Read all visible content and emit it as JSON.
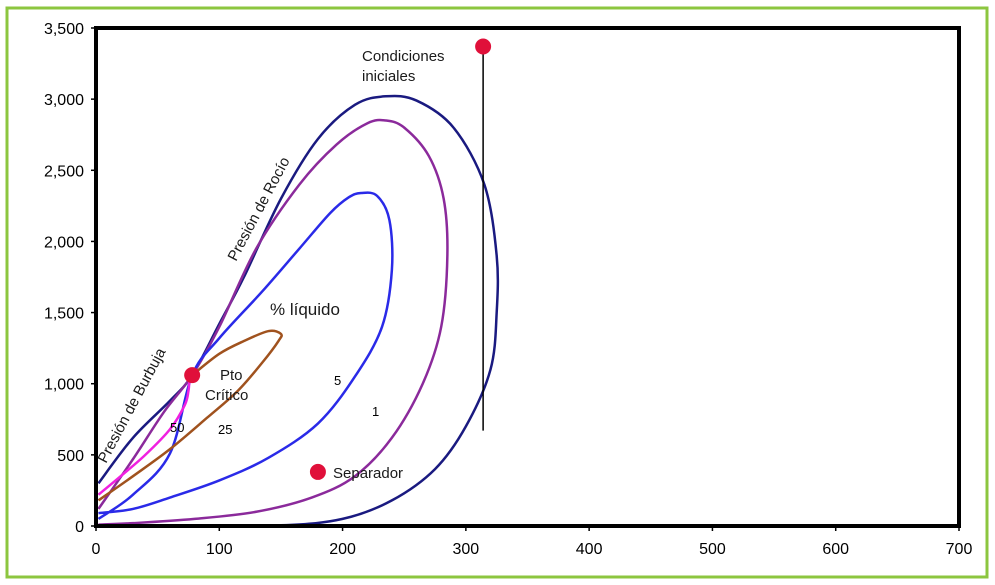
{
  "chart_data": {
    "type": "line",
    "title": "",
    "xlabel": "",
    "ylabel": "",
    "xlim": [
      0,
      700
    ],
    "ylim": [
      0,
      3500
    ],
    "x_ticks": [
      {
        "value": 0,
        "label": "0"
      },
      {
        "value": 100,
        "label": "100"
      },
      {
        "value": 200,
        "label": "200"
      },
      {
        "value": 300,
        "label": "300"
      },
      {
        "value": 400,
        "label": "400"
      },
      {
        "value": 500,
        "label": "500"
      },
      {
        "value": 600,
        "label": "600"
      },
      {
        "value": 700,
        "label": "700"
      }
    ],
    "y_ticks": [
      {
        "value": 0,
        "label": "0"
      },
      {
        "value": 500,
        "label": "500"
      },
      {
        "value": 1000,
        "label": "1,000"
      },
      {
        "value": 1500,
        "label": "1,500"
      },
      {
        "value": 2000,
        "label": "2,000"
      },
      {
        "value": 2500,
        "label": "2,500"
      },
      {
        "value": 3000,
        "label": "3,000"
      },
      {
        "value": 3500,
        "label": "3,500"
      }
    ],
    "grid": false,
    "legend": "none",
    "series": [
      {
        "name": "",
        "color": "#1a1a80",
        "points": [
          [
            2,
            300
          ],
          [
            30,
            620
          ],
          [
            60,
            880
          ],
          [
            78,
            1060
          ],
          [
            100,
            1420
          ],
          [
            120,
            1750
          ],
          [
            150,
            2300
          ],
          [
            180,
            2720
          ],
          [
            210,
            2960
          ],
          [
            235,
            3020
          ],
          [
            260,
            2990
          ],
          [
            290,
            2800
          ],
          [
            315,
            2400
          ],
          [
            325,
            1900
          ],
          [
            325,
            1500
          ],
          [
            320,
            1100
          ],
          [
            300,
            700
          ],
          [
            275,
            400
          ],
          [
            240,
            180
          ],
          [
            200,
            50
          ],
          [
            150,
            5
          ],
          [
            60,
            0
          ]
        ]
      },
      {
        "name": "",
        "color": "#8b2a9b",
        "points": [
          [
            2,
            120
          ],
          [
            30,
            470
          ],
          [
            55,
            800
          ],
          [
            78,
            1060
          ],
          [
            100,
            1400
          ],
          [
            130,
            1950
          ],
          [
            165,
            2400
          ],
          [
            195,
            2680
          ],
          [
            220,
            2830
          ],
          [
            235,
            2850
          ],
          [
            250,
            2800
          ],
          [
            270,
            2600
          ],
          [
            282,
            2300
          ],
          [
            285,
            1900
          ],
          [
            280,
            1400
          ],
          [
            265,
            1000
          ],
          [
            240,
            620
          ],
          [
            210,
            350
          ],
          [
            175,
            200
          ],
          [
            130,
            100
          ],
          [
            80,
            50
          ],
          [
            30,
            20
          ],
          [
            2,
            10
          ]
        ]
      },
      {
        "name": "",
        "color": "#2a2ae8",
        "points": [
          [
            2,
            50
          ],
          [
            30,
            220
          ],
          [
            60,
            510
          ],
          [
            78,
            1060
          ],
          [
            100,
            1320
          ],
          [
            135,
            1650
          ],
          [
            165,
            1950
          ],
          [
            190,
            2200
          ],
          [
            205,
            2310
          ],
          [
            215,
            2340
          ],
          [
            228,
            2320
          ],
          [
            238,
            2150
          ],
          [
            240,
            1800
          ],
          [
            232,
            1400
          ],
          [
            210,
            1050
          ],
          [
            180,
            720
          ],
          [
            140,
            480
          ],
          [
            100,
            320
          ],
          [
            60,
            200
          ],
          [
            30,
            120
          ],
          [
            2,
            90
          ]
        ]
      },
      {
        "name": "",
        "color": "#a0521e",
        "points": [
          [
            2,
            180
          ],
          [
            30,
            350
          ],
          [
            60,
            540
          ],
          [
            90,
            760
          ],
          [
            115,
            950
          ],
          [
            135,
            1150
          ],
          [
            148,
            1300
          ],
          [
            150,
            1350
          ],
          [
            140,
            1370
          ],
          [
            120,
            1300
          ],
          [
            100,
            1210
          ],
          [
            78,
            1060
          ]
        ]
      },
      {
        "name": "",
        "color": "#f020e0",
        "points": [
          [
            2,
            220
          ],
          [
            20,
            350
          ],
          [
            40,
            500
          ],
          [
            60,
            680
          ],
          [
            72,
            850
          ],
          [
            75,
            950
          ],
          [
            76,
            1040
          ],
          [
            78,
            1060
          ]
        ]
      },
      {
        "name": "",
        "color": "#000000",
        "points": [
          [
            314,
            3370
          ],
          [
            314,
            670
          ]
        ]
      }
    ],
    "markers": [
      {
        "name": "Condiciones iniciales",
        "x": 314,
        "y": 3370,
        "color": "#e0103a"
      },
      {
        "name": "Pto Crítico",
        "x": 78,
        "y": 1060,
        "color": "#e0103a"
      },
      {
        "name": "Separador",
        "x": 180,
        "y": 380,
        "color": "#e0103a"
      }
    ],
    "annotations": {
      "condiciones_l1": "Condiciones",
      "condiciones_l2": "iniciales",
      "pto_l1": "Pto",
      "pto_l2": "Crítico",
      "separador": "Separador",
      "liquido": "% líquido",
      "rocio": "Presión de Rocío",
      "burbuja": "Presión de Burbuja",
      "label_50": "50",
      "label_25": "25",
      "label_5": "5",
      "label_1": "1"
    }
  },
  "colors": {
    "frame": "#8cc63f",
    "axis": "#000000"
  }
}
